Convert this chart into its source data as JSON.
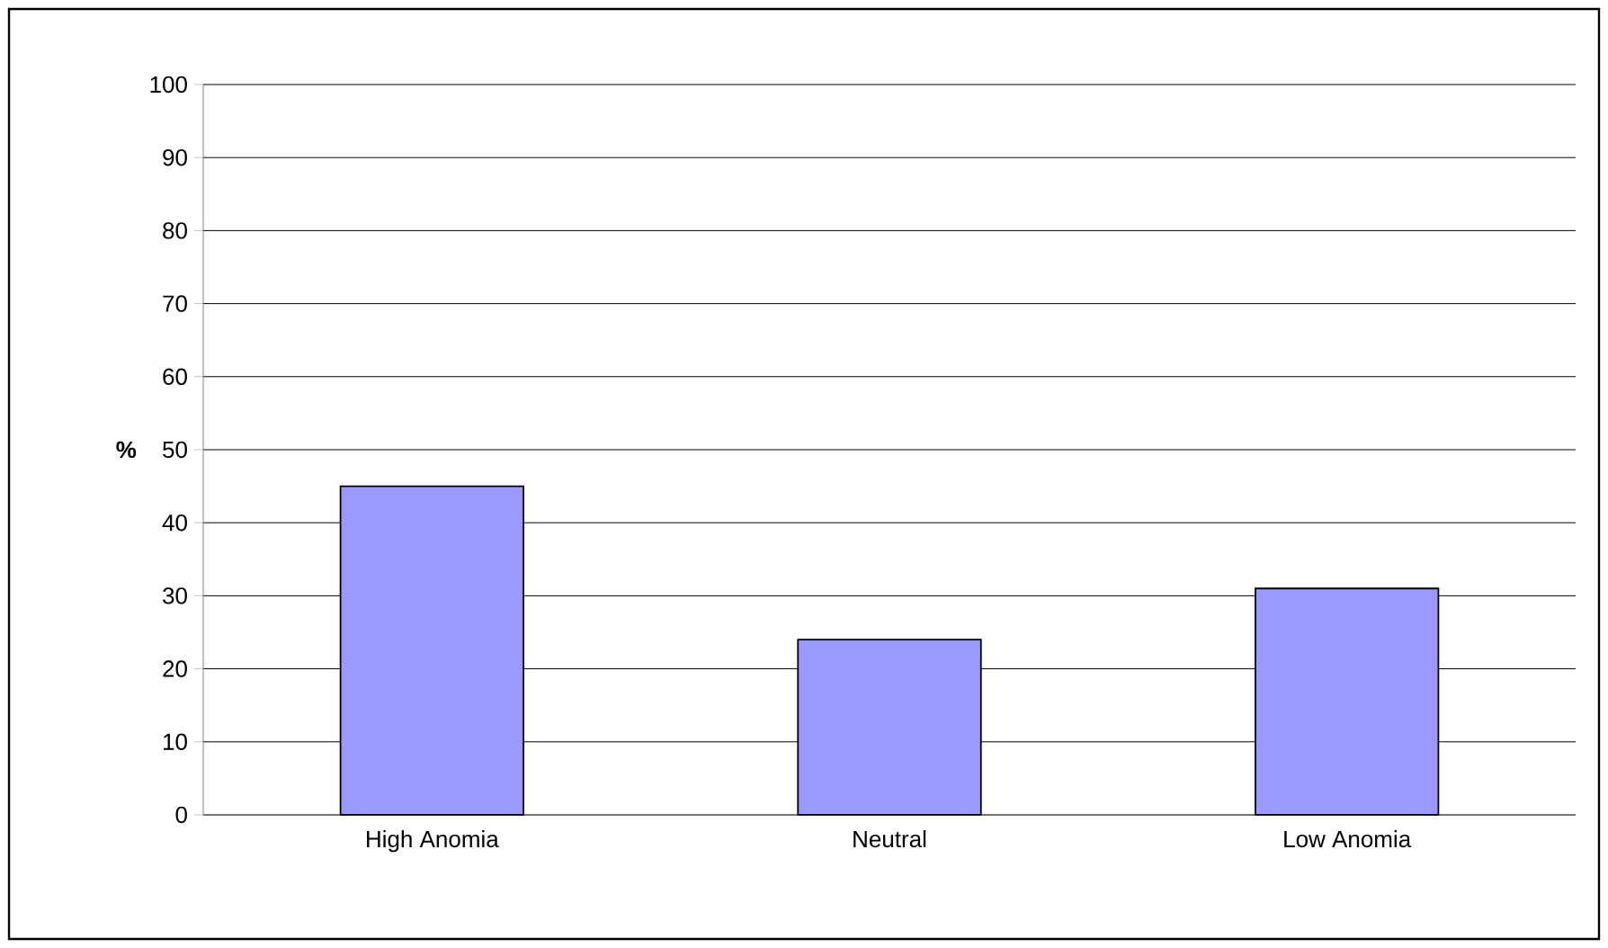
{
  "chart_data": {
    "type": "bar",
    "ylabel": "%",
    "categories": [
      "High Anomia",
      "Neutral",
      "Low Anomia"
    ],
    "values": [
      45,
      24,
      31
    ],
    "color": "#9999ff",
    "ylim": [
      0,
      100
    ],
    "yticks": [
      0,
      10,
      20,
      30,
      40,
      50,
      60,
      70,
      80,
      90,
      100
    ],
    "grid": "y"
  }
}
